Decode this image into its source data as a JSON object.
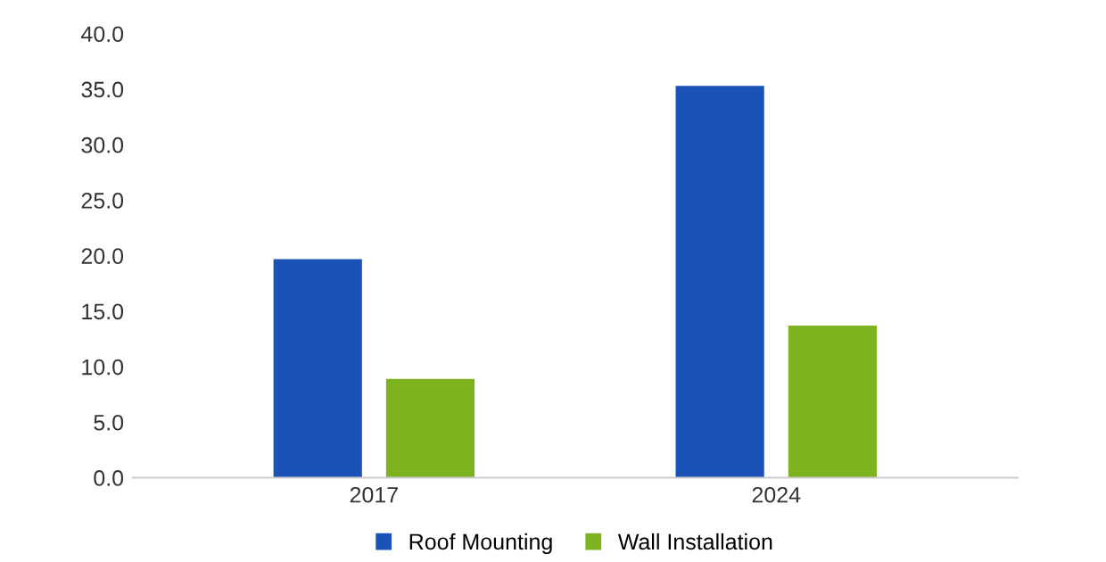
{
  "chart_data": {
    "type": "bar",
    "categories": [
      "2017",
      "2024"
    ],
    "series": [
      {
        "name": "Roof Mounting",
        "color": "#1a52b8",
        "values": [
          19.7,
          35.3
        ]
      },
      {
        "name": "Wall Installation",
        "color": "#7db31f",
        "values": [
          8.9,
          13.7
        ]
      }
    ],
    "ylim": [
      0,
      40
    ],
    "yticks": [
      {
        "value": 0,
        "label": "0.0"
      },
      {
        "value": 5,
        "label": "5.0"
      },
      {
        "value": 10,
        "label": "10.0"
      },
      {
        "value": 15,
        "label": "15.0"
      },
      {
        "value": 20,
        "label": "20.0"
      },
      {
        "value": 25,
        "label": "25.0"
      },
      {
        "value": 30,
        "label": "30.0"
      },
      {
        "value": 35,
        "label": "35.0"
      },
      {
        "value": 40,
        "label": "40.0"
      }
    ],
    "legend": "bottom"
  }
}
